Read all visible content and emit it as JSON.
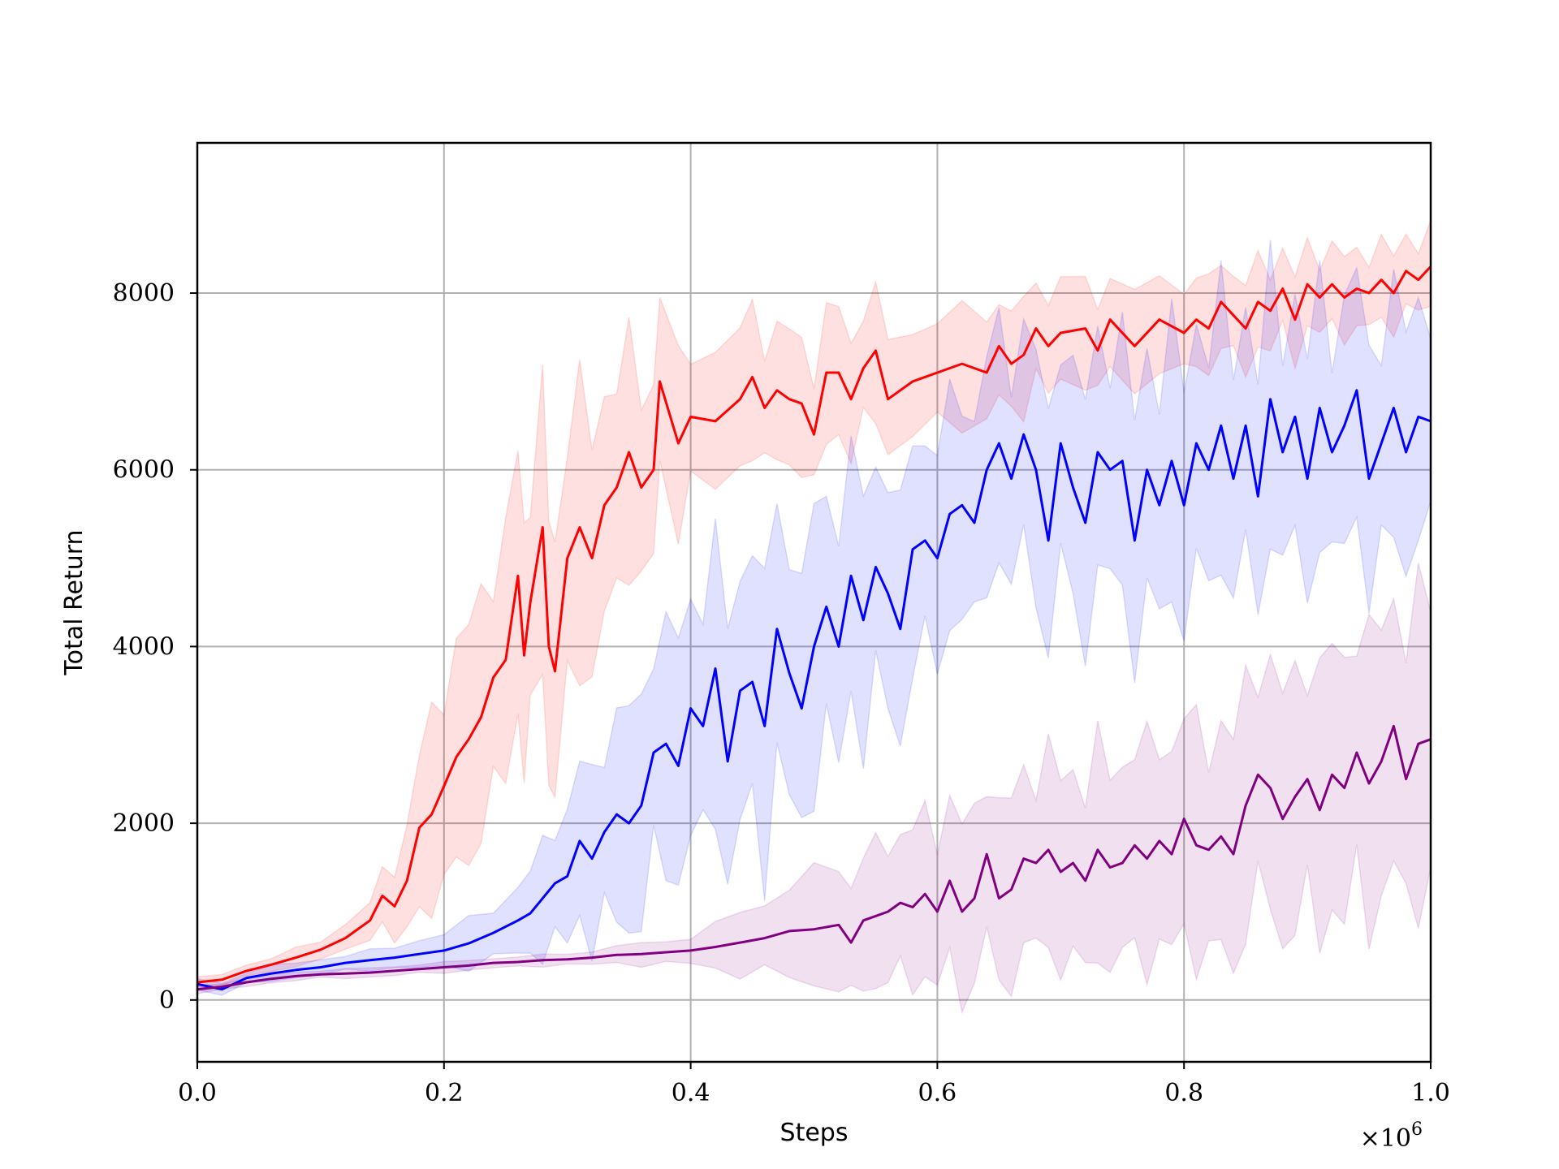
{
  "chart_data": {
    "type": "line",
    "title": "",
    "xlabel": "Steps",
    "ylabel": "Total Return",
    "x_multiplier_label": "×10",
    "x_multiplier_exponent": "6",
    "xlim": [
      0.0,
      1.0
    ],
    "ylim": [
      -700,
      9700
    ],
    "grid": true,
    "legend": "none",
    "xticks": [
      {
        "value": 0.0,
        "label": "0.0"
      },
      {
        "value": 0.2,
        "label": "0.2"
      },
      {
        "value": 0.4,
        "label": "0.4"
      },
      {
        "value": 0.6,
        "label": "0.6"
      },
      {
        "value": 0.8,
        "label": "0.8"
      },
      {
        "value": 1.0,
        "label": "1.0"
      }
    ],
    "yticks": [
      {
        "value": 0,
        "label": "0"
      },
      {
        "value": 2000,
        "label": "2000"
      },
      {
        "value": 4000,
        "label": "4000"
      },
      {
        "value": 6000,
        "label": "6000"
      },
      {
        "value": 8000,
        "label": "8000"
      }
    ],
    "series": [
      {
        "color": "#ff0000",
        "band_color": "#ff0000",
        "points": [
          [
            0.0,
            200
          ],
          [
            0.02,
            230
          ],
          [
            0.04,
            330
          ],
          [
            0.06,
            400
          ],
          [
            0.08,
            480
          ],
          [
            0.1,
            570
          ],
          [
            0.12,
            700
          ],
          [
            0.14,
            900
          ],
          [
            0.15,
            1180
          ],
          [
            0.16,
            1060
          ],
          [
            0.17,
            1350
          ],
          [
            0.18,
            1950
          ],
          [
            0.19,
            2100
          ],
          [
            0.2,
            2420
          ],
          [
            0.21,
            2750
          ],
          [
            0.22,
            2950
          ],
          [
            0.23,
            3200
          ],
          [
            0.24,
            3650
          ],
          [
            0.25,
            3850
          ],
          [
            0.26,
            4800
          ],
          [
            0.265,
            3900
          ],
          [
            0.27,
            4500
          ],
          [
            0.28,
            5350
          ],
          [
            0.285,
            4000
          ],
          [
            0.29,
            3720
          ],
          [
            0.3,
            5000
          ],
          [
            0.31,
            5350
          ],
          [
            0.32,
            5000
          ],
          [
            0.33,
            5600
          ],
          [
            0.34,
            5800
          ],
          [
            0.35,
            6200
          ],
          [
            0.36,
            5800
          ],
          [
            0.37,
            6000
          ],
          [
            0.375,
            7000
          ],
          [
            0.39,
            6300
          ],
          [
            0.4,
            6600
          ],
          [
            0.42,
            6550
          ],
          [
            0.44,
            6800
          ],
          [
            0.45,
            7050
          ],
          [
            0.46,
            6700
          ],
          [
            0.47,
            6900
          ],
          [
            0.48,
            6800
          ],
          [
            0.49,
            6750
          ],
          [
            0.5,
            6400
          ],
          [
            0.51,
            7100
          ],
          [
            0.52,
            7100
          ],
          [
            0.53,
            6800
          ],
          [
            0.54,
            7150
          ],
          [
            0.55,
            7350
          ],
          [
            0.56,
            6800
          ],
          [
            0.58,
            7000
          ],
          [
            0.6,
            7100
          ],
          [
            0.62,
            7200
          ],
          [
            0.64,
            7100
          ],
          [
            0.65,
            7400
          ],
          [
            0.66,
            7200
          ],
          [
            0.67,
            7300
          ],
          [
            0.68,
            7600
          ],
          [
            0.69,
            7400
          ],
          [
            0.7,
            7550
          ],
          [
            0.72,
            7600
          ],
          [
            0.73,
            7350
          ],
          [
            0.74,
            7700
          ],
          [
            0.76,
            7400
          ],
          [
            0.78,
            7700
          ],
          [
            0.8,
            7550
          ],
          [
            0.81,
            7700
          ],
          [
            0.82,
            7600
          ],
          [
            0.83,
            7900
          ],
          [
            0.84,
            7750
          ],
          [
            0.85,
            7600
          ],
          [
            0.86,
            7900
          ],
          [
            0.87,
            7800
          ],
          [
            0.88,
            8050
          ],
          [
            0.89,
            7700
          ],
          [
            0.9,
            8100
          ],
          [
            0.91,
            7950
          ],
          [
            0.92,
            8100
          ],
          [
            0.93,
            7950
          ],
          [
            0.94,
            8050
          ],
          [
            0.95,
            8000
          ],
          [
            0.96,
            8150
          ],
          [
            0.97,
            8000
          ],
          [
            0.98,
            8250
          ],
          [
            0.99,
            8150
          ],
          [
            1.0,
            8300
          ]
        ],
        "band_halfwidth_by_x": [
          [
            0.0,
            50
          ],
          [
            0.1,
            100
          ],
          [
            0.15,
            250
          ],
          [
            0.2,
            1200
          ],
          [
            0.3,
            1500
          ],
          [
            0.4,
            800
          ],
          [
            0.6,
            600
          ],
          [
            0.8,
            500
          ],
          [
            1.0,
            400
          ]
        ]
      },
      {
        "color": "#0000ff",
        "band_color": "#0000ff",
        "points": [
          [
            0.0,
            180
          ],
          [
            0.02,
            120
          ],
          [
            0.04,
            250
          ],
          [
            0.06,
            300
          ],
          [
            0.08,
            340
          ],
          [
            0.1,
            370
          ],
          [
            0.12,
            420
          ],
          [
            0.14,
            450
          ],
          [
            0.16,
            480
          ],
          [
            0.18,
            520
          ],
          [
            0.2,
            560
          ],
          [
            0.22,
            640
          ],
          [
            0.24,
            760
          ],
          [
            0.26,
            900
          ],
          [
            0.27,
            980
          ],
          [
            0.28,
            1150
          ],
          [
            0.29,
            1320
          ],
          [
            0.3,
            1400
          ],
          [
            0.31,
            1800
          ],
          [
            0.32,
            1600
          ],
          [
            0.33,
            1900
          ],
          [
            0.34,
            2100
          ],
          [
            0.35,
            2000
          ],
          [
            0.36,
            2200
          ],
          [
            0.37,
            2800
          ],
          [
            0.38,
            2900
          ],
          [
            0.39,
            2650
          ],
          [
            0.4,
            3300
          ],
          [
            0.41,
            3100
          ],
          [
            0.42,
            3750
          ],
          [
            0.43,
            2700
          ],
          [
            0.44,
            3500
          ],
          [
            0.45,
            3600
          ],
          [
            0.46,
            3100
          ],
          [
            0.47,
            4200
          ],
          [
            0.48,
            3700
          ],
          [
            0.49,
            3300
          ],
          [
            0.5,
            4000
          ],
          [
            0.51,
            4450
          ],
          [
            0.52,
            4000
          ],
          [
            0.53,
            4800
          ],
          [
            0.54,
            4300
          ],
          [
            0.55,
            4900
          ],
          [
            0.56,
            4600
          ],
          [
            0.57,
            4200
          ],
          [
            0.58,
            5100
          ],
          [
            0.59,
            5200
          ],
          [
            0.6,
            5000
          ],
          [
            0.61,
            5500
          ],
          [
            0.62,
            5600
          ],
          [
            0.63,
            5400
          ],
          [
            0.64,
            6000
          ],
          [
            0.65,
            6300
          ],
          [
            0.66,
            5900
          ],
          [
            0.67,
            6400
          ],
          [
            0.68,
            6000
          ],
          [
            0.69,
            5200
          ],
          [
            0.7,
            6300
          ],
          [
            0.71,
            5800
          ],
          [
            0.72,
            5400
          ],
          [
            0.73,
            6200
          ],
          [
            0.74,
            6000
          ],
          [
            0.75,
            6100
          ],
          [
            0.76,
            5200
          ],
          [
            0.77,
            6000
          ],
          [
            0.78,
            5600
          ],
          [
            0.79,
            6100
          ],
          [
            0.8,
            5600
          ],
          [
            0.81,
            6300
          ],
          [
            0.82,
            6000
          ],
          [
            0.83,
            6500
          ],
          [
            0.84,
            5900
          ],
          [
            0.85,
            6500
          ],
          [
            0.86,
            5700
          ],
          [
            0.87,
            6800
          ],
          [
            0.88,
            6200
          ],
          [
            0.89,
            6600
          ],
          [
            0.9,
            5900
          ],
          [
            0.91,
            6700
          ],
          [
            0.92,
            6200
          ],
          [
            0.93,
            6500
          ],
          [
            0.94,
            6900
          ],
          [
            0.95,
            5900
          ],
          [
            0.96,
            6300
          ],
          [
            0.97,
            6700
          ],
          [
            0.98,
            6200
          ],
          [
            0.99,
            6600
          ],
          [
            1.0,
            6550
          ]
        ],
        "band_halfwidth_by_x": [
          [
            0.0,
            60
          ],
          [
            0.15,
            100
          ],
          [
            0.25,
            300
          ],
          [
            0.35,
            1200
          ],
          [
            0.45,
            1500
          ],
          [
            0.6,
            1200
          ],
          [
            0.8,
            1400
          ],
          [
            1.0,
            1300
          ]
        ]
      },
      {
        "color": "#800080",
        "band_color": "#800080",
        "points": [
          [
            0.0,
            120
          ],
          [
            0.02,
            150
          ],
          [
            0.04,
            200
          ],
          [
            0.06,
            240
          ],
          [
            0.08,
            270
          ],
          [
            0.1,
            290
          ],
          [
            0.12,
            300
          ],
          [
            0.14,
            310
          ],
          [
            0.16,
            330
          ],
          [
            0.18,
            350
          ],
          [
            0.2,
            370
          ],
          [
            0.22,
            390
          ],
          [
            0.24,
            420
          ],
          [
            0.26,
            430
          ],
          [
            0.28,
            450
          ],
          [
            0.3,
            460
          ],
          [
            0.32,
            480
          ],
          [
            0.34,
            510
          ],
          [
            0.36,
            520
          ],
          [
            0.38,
            540
          ],
          [
            0.4,
            560
          ],
          [
            0.42,
            600
          ],
          [
            0.44,
            650
          ],
          [
            0.46,
            700
          ],
          [
            0.48,
            780
          ],
          [
            0.5,
            800
          ],
          [
            0.52,
            850
          ],
          [
            0.53,
            650
          ],
          [
            0.54,
            900
          ],
          [
            0.55,
            950
          ],
          [
            0.56,
            1000
          ],
          [
            0.57,
            1100
          ],
          [
            0.58,
            1050
          ],
          [
            0.59,
            1200
          ],
          [
            0.6,
            1000
          ],
          [
            0.61,
            1350
          ],
          [
            0.62,
            1000
          ],
          [
            0.63,
            1150
          ],
          [
            0.64,
            1650
          ],
          [
            0.65,
            1150
          ],
          [
            0.66,
            1250
          ],
          [
            0.67,
            1600
          ],
          [
            0.68,
            1550
          ],
          [
            0.69,
            1700
          ],
          [
            0.7,
            1450
          ],
          [
            0.71,
            1550
          ],
          [
            0.72,
            1350
          ],
          [
            0.73,
            1700
          ],
          [
            0.74,
            1500
          ],
          [
            0.75,
            1550
          ],
          [
            0.76,
            1750
          ],
          [
            0.77,
            1600
          ],
          [
            0.78,
            1800
          ],
          [
            0.79,
            1650
          ],
          [
            0.8,
            2050
          ],
          [
            0.81,
            1750
          ],
          [
            0.82,
            1700
          ],
          [
            0.83,
            1850
          ],
          [
            0.84,
            1650
          ],
          [
            0.85,
            2200
          ],
          [
            0.86,
            2550
          ],
          [
            0.87,
            2400
          ],
          [
            0.88,
            2050
          ],
          [
            0.89,
            2300
          ],
          [
            0.9,
            2500
          ],
          [
            0.91,
            2150
          ],
          [
            0.92,
            2550
          ],
          [
            0.93,
            2400
          ],
          [
            0.94,
            2800
          ],
          [
            0.95,
            2450
          ],
          [
            0.96,
            2700
          ],
          [
            0.97,
            3100
          ],
          [
            0.98,
            2500
          ],
          [
            0.99,
            2900
          ],
          [
            1.0,
            2950
          ]
        ],
        "band_halfwidth_by_x": [
          [
            0.0,
            40
          ],
          [
            0.3,
            60
          ],
          [
            0.4,
            150
          ],
          [
            0.5,
            600
          ],
          [
            0.6,
            900
          ],
          [
            0.8,
            1200
          ],
          [
            1.0,
            1600
          ]
        ]
      }
    ]
  }
}
